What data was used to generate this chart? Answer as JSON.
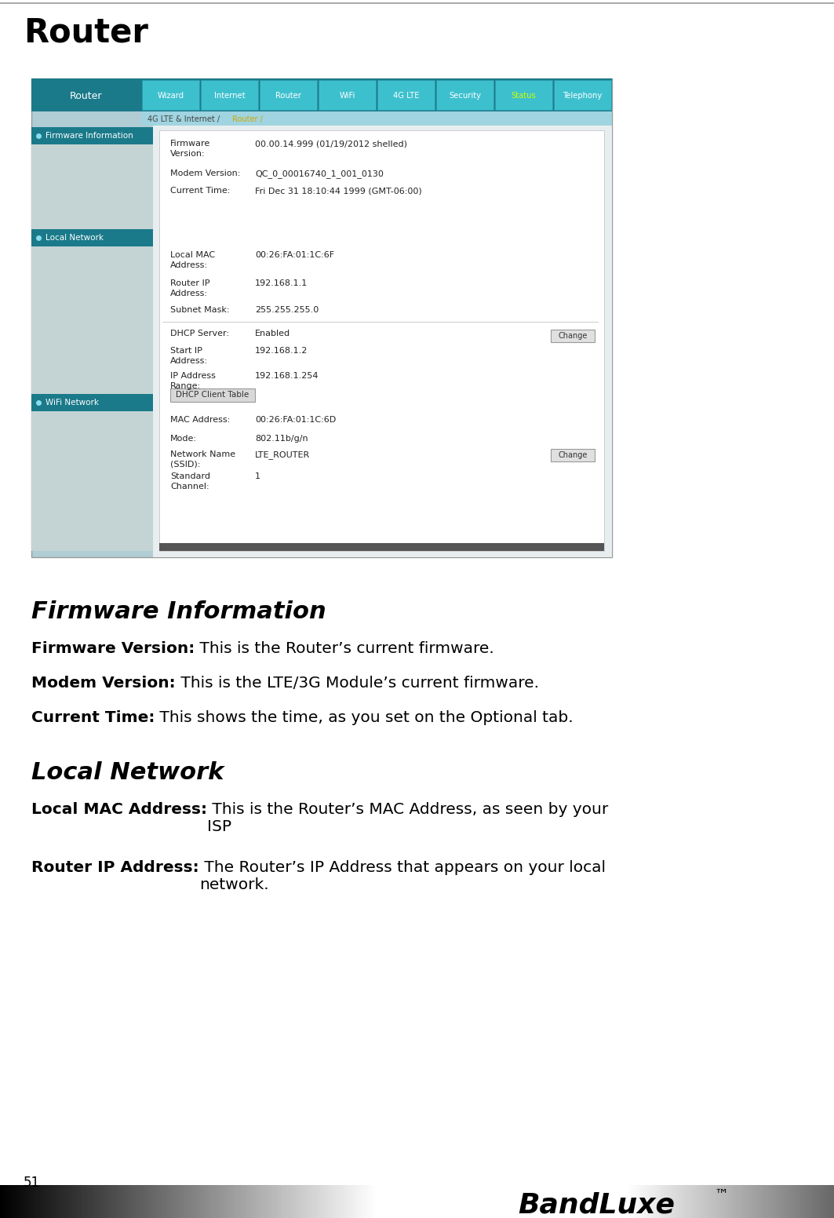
{
  "page_title": "Router",
  "page_number": "51",
  "bg_color": "#ffffff",
  "nav_bg_color": "#1a7a8a",
  "nav_tab_color": "#3ab8c8",
  "nav_active_tab": "Status",
  "nav_tabs": [
    "Wizard",
    "Internet",
    "Router",
    "WiFi",
    "4G LTE",
    "Security",
    "Status",
    "Telephony"
  ],
  "nav_left_label": "Router",
  "breadcrumb_text": "4G LTE & Internet /",
  "breadcrumb_active": "Router /",
  "sidebar_sections": [
    "Firmware Information",
    "Local Network",
    "WiFi Network"
  ],
  "firmware_version_label": "Firmware\nVersion:",
  "firmware_version_value": "00.00.14.999 (01/19/2012 shelled)",
  "modem_version_label": "Modem Version:",
  "modem_version_value": "QC_0_00016740_1_001_0130",
  "current_time_label": "Current Time:",
  "current_time_value": "Fri Dec 31 18:10:44 1999 (GMT-06:00)",
  "local_mac_value": "00:26:FA:01:1C:6F",
  "router_ip_value": "192.168.1.1",
  "subnet_mask_value": "255.255.255.0",
  "dhcp_server_value": "Enabled",
  "start_ip_value": "192.168.1.2",
  "ip_range_value": "192.168.1.254",
  "dhcp_btn_text": "DHCP Client Table",
  "mac_address_value": "00:26:FA:01:1C:6D",
  "mode_value": "802.11b/g/n",
  "ssid_value": "LTE_ROUTER",
  "channel_value": "1",
  "change_btn_text": "Change",
  "section1_title": "Firmware Information",
  "section1_b1": "Firmware Version:",
  "section1_t1": " This is the Router’s current firmware.",
  "section1_b2": "Modem Version:",
  "section1_t2": " This is the LTE/3G Module’s current firmware.",
  "section1_b3": "Current Time:",
  "section1_t3": " This shows the time, as you set on the Optional tab.",
  "section2_title": "Local Network",
  "section2_b1": "Local MAC Address:",
  "section2_t1": " This is the Router’s MAC Address, as seen by your\nISP",
  "section2_b2": "Router IP Address:",
  "section2_t2": " The Router’s IP Address that appears on your local\nnetwork.",
  "bandluxe_text": "BandLuxe",
  "tm_text": "™"
}
